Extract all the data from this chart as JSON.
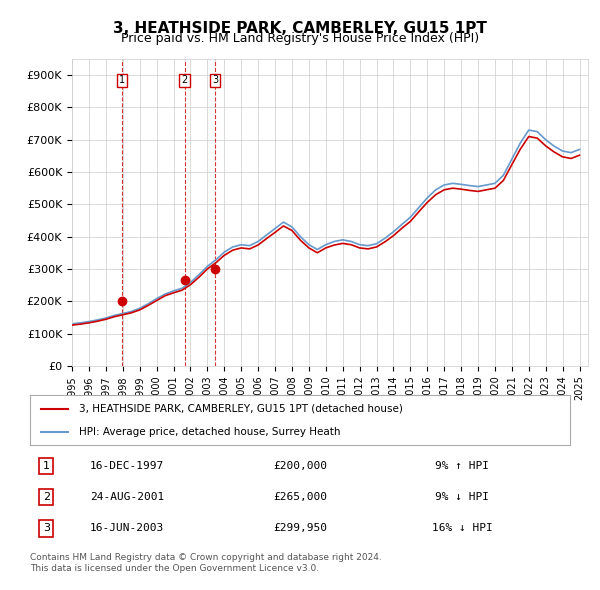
{
  "title": "3, HEATHSIDE PARK, CAMBERLEY, GU15 1PT",
  "subtitle": "Price paid vs. HM Land Registry's House Price Index (HPI)",
  "ylabel": "",
  "ylim": [
    0,
    950000
  ],
  "yticks": [
    0,
    100000,
    200000,
    300000,
    400000,
    500000,
    600000,
    700000,
    800000,
    900000
  ],
  "ytick_labels": [
    "£0",
    "£100K",
    "£200K",
    "£300K",
    "£400K",
    "£500K",
    "£600K",
    "£700K",
    "£800K",
    "£900K"
  ],
  "hpi_color": "#6699cc",
  "price_color": "#cc0000",
  "dashed_color": "#cc0000",
  "sale_marker_color": "#cc0000",
  "sale_dates": [
    "1997-12-16",
    "2001-08-24",
    "2003-06-16"
  ],
  "sale_prices": [
    200000,
    265000,
    299950
  ],
  "sale_labels": [
    "1",
    "2",
    "3"
  ],
  "legend_line1": "3, HEATHSIDE PARK, CAMBERLEY, GU15 1PT (detached house)",
  "legend_line2": "HPI: Average price, detached house, Surrey Heath",
  "table_rows": [
    [
      "1",
      "16-DEC-1997",
      "£200,000",
      "9% ↑ HPI"
    ],
    [
      "2",
      "24-AUG-2001",
      "£265,000",
      "9% ↓ HPI"
    ],
    [
      "3",
      "16-JUN-2003",
      "£299,950",
      "16% ↓ HPI"
    ]
  ],
  "footer": "Contains HM Land Registry data © Crown copyright and database right 2024.\nThis data is licensed under the Open Government Licence v3.0.",
  "background_color": "#ffffff",
  "grid_color": "#cccccc"
}
